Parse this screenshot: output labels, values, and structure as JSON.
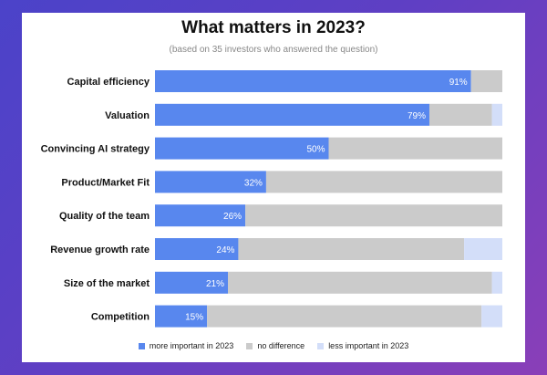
{
  "chart_data": {
    "type": "bar",
    "orientation": "horizontal",
    "stacked": true,
    "title": "What matters in 2023?",
    "subtitle": "(based on 35 investors who answered the question)",
    "categories": [
      "Capital efficiency",
      "Valuation",
      "Convincing AI strategy",
      "Product/Market Fit",
      "Quality of the team",
      "Revenue growth rate",
      "Size of the market",
      "Competition"
    ],
    "series": [
      {
        "name": "more important in 2023",
        "color": "#5887ee",
        "values": [
          91,
          79,
          50,
          32,
          26,
          24,
          21,
          15
        ],
        "labels": [
          "91%",
          "79%",
          "50%",
          "32%",
          "26%",
          "24%",
          "21%",
          "15%"
        ]
      },
      {
        "name": "no difference",
        "color": "#cbcbcb",
        "values": [
          9,
          18,
          50,
          68,
          74,
          65,
          76,
          79
        ]
      },
      {
        "name": "less important in 2023",
        "color": "#d3def9",
        "values": [
          0,
          3,
          0,
          0,
          0,
          11,
          3,
          6
        ]
      }
    ],
    "xlim": [
      0,
      100
    ],
    "grid": false,
    "legend_position": "bottom"
  }
}
